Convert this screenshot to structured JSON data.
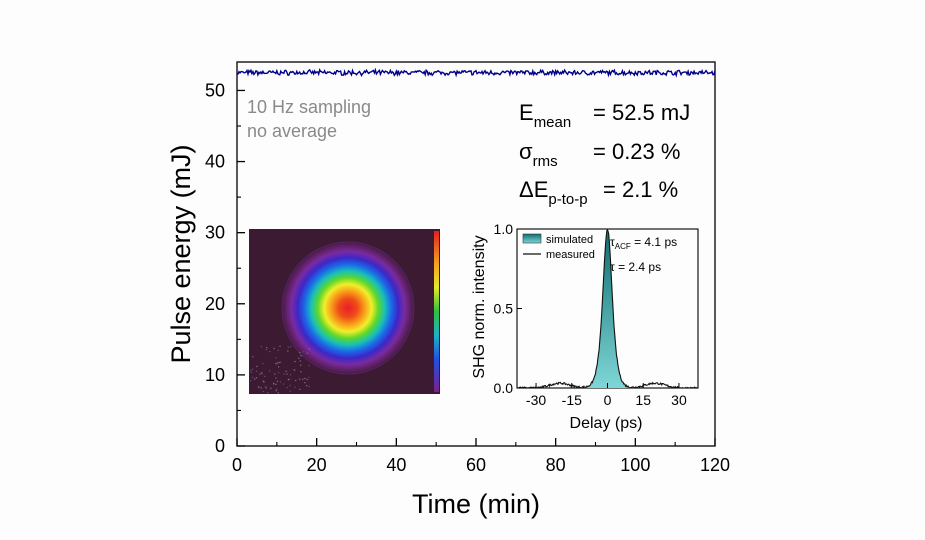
{
  "chart_data": [
    {
      "type": "line",
      "title": "",
      "xlabel": "Time (min)",
      "ylabel": "Pulse energy (mJ)",
      "xlim": [
        0,
        120
      ],
      "ylim": [
        0,
        54
      ],
      "x_ticks": [
        "0",
        "20",
        "40",
        "60",
        "80",
        "100",
        "120"
      ],
      "y_ticks": [
        "0",
        "10",
        "20",
        "30",
        "40",
        "50"
      ],
      "series": [
        {
          "name": "pulse energy",
          "color": "#00008b",
          "x": [
            0,
            120
          ],
          "mean": 52.5
        }
      ],
      "annotations": {
        "sampling_line1": "10 Hz sampling",
        "sampling_line2": "no average",
        "stat1": {
          "symbol": "E",
          "sub": "mean",
          "value": "= 52.5 mJ"
        },
        "stat2": {
          "symbol": "σ",
          "sub": "rms",
          "value": "= 0.23 %"
        },
        "stat3": {
          "symbol": "ΔE",
          "sub": "p-to-p",
          "value": "= 2.1 %"
        }
      }
    },
    {
      "type": "area",
      "title": "",
      "xlabel": "Delay (ps)",
      "ylabel": "SHG norm. intensity",
      "xlim": [
        -38,
        38
      ],
      "ylim": [
        0,
        1.0
      ],
      "x_ticks": [
        "-30",
        "-15",
        "0",
        "15",
        "30"
      ],
      "y_ticks": [
        "0.0",
        "0.5",
        "1.0"
      ],
      "series": [
        {
          "name": "simulated",
          "color": "#2aa6a8",
          "fwhm_ps": 4.1
        },
        {
          "name": "measured",
          "color": "#111111",
          "fwhm_ps": 4.1
        }
      ],
      "legend": {
        "simulated": "simulated",
        "measured": "measured",
        "placement": "top-left"
      },
      "annotations": {
        "tau_acf": {
          "symbol": "τ",
          "sub": "ACF",
          "value": " = 4.1 ps"
        },
        "tau": "τ = 2.4 ps"
      }
    }
  ],
  "beam_profile": {
    "description_icon": "beam-profile-image",
    "colormap": "rainbow"
  }
}
